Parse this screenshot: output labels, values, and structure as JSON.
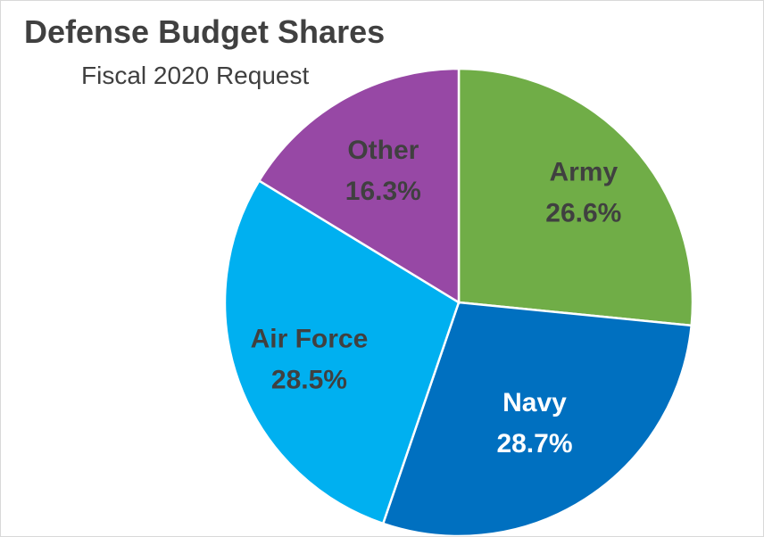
{
  "chart_data": {
    "type": "pie",
    "title": "Defense Budget Shares",
    "subtitle": "Fiscal 2020 Request",
    "start": "top",
    "direction": "clockwise",
    "slices": [
      {
        "label": "Army",
        "value": 26.6,
        "display": "26.6%",
        "color": "#70AD47",
        "text_color": "#404040"
      },
      {
        "label": "Navy",
        "value": 28.7,
        "display": "28.7%",
        "color": "#0070C0",
        "text_color": "#ffffff"
      },
      {
        "label": "Air Force",
        "value": 28.5,
        "display": "28.5%",
        "color": "#00B0F0",
        "text_color": "#404040"
      },
      {
        "label": "Other",
        "value": 16.3,
        "display": "16.3%",
        "color": "#9748A5",
        "text_color": "#404040"
      }
    ]
  }
}
